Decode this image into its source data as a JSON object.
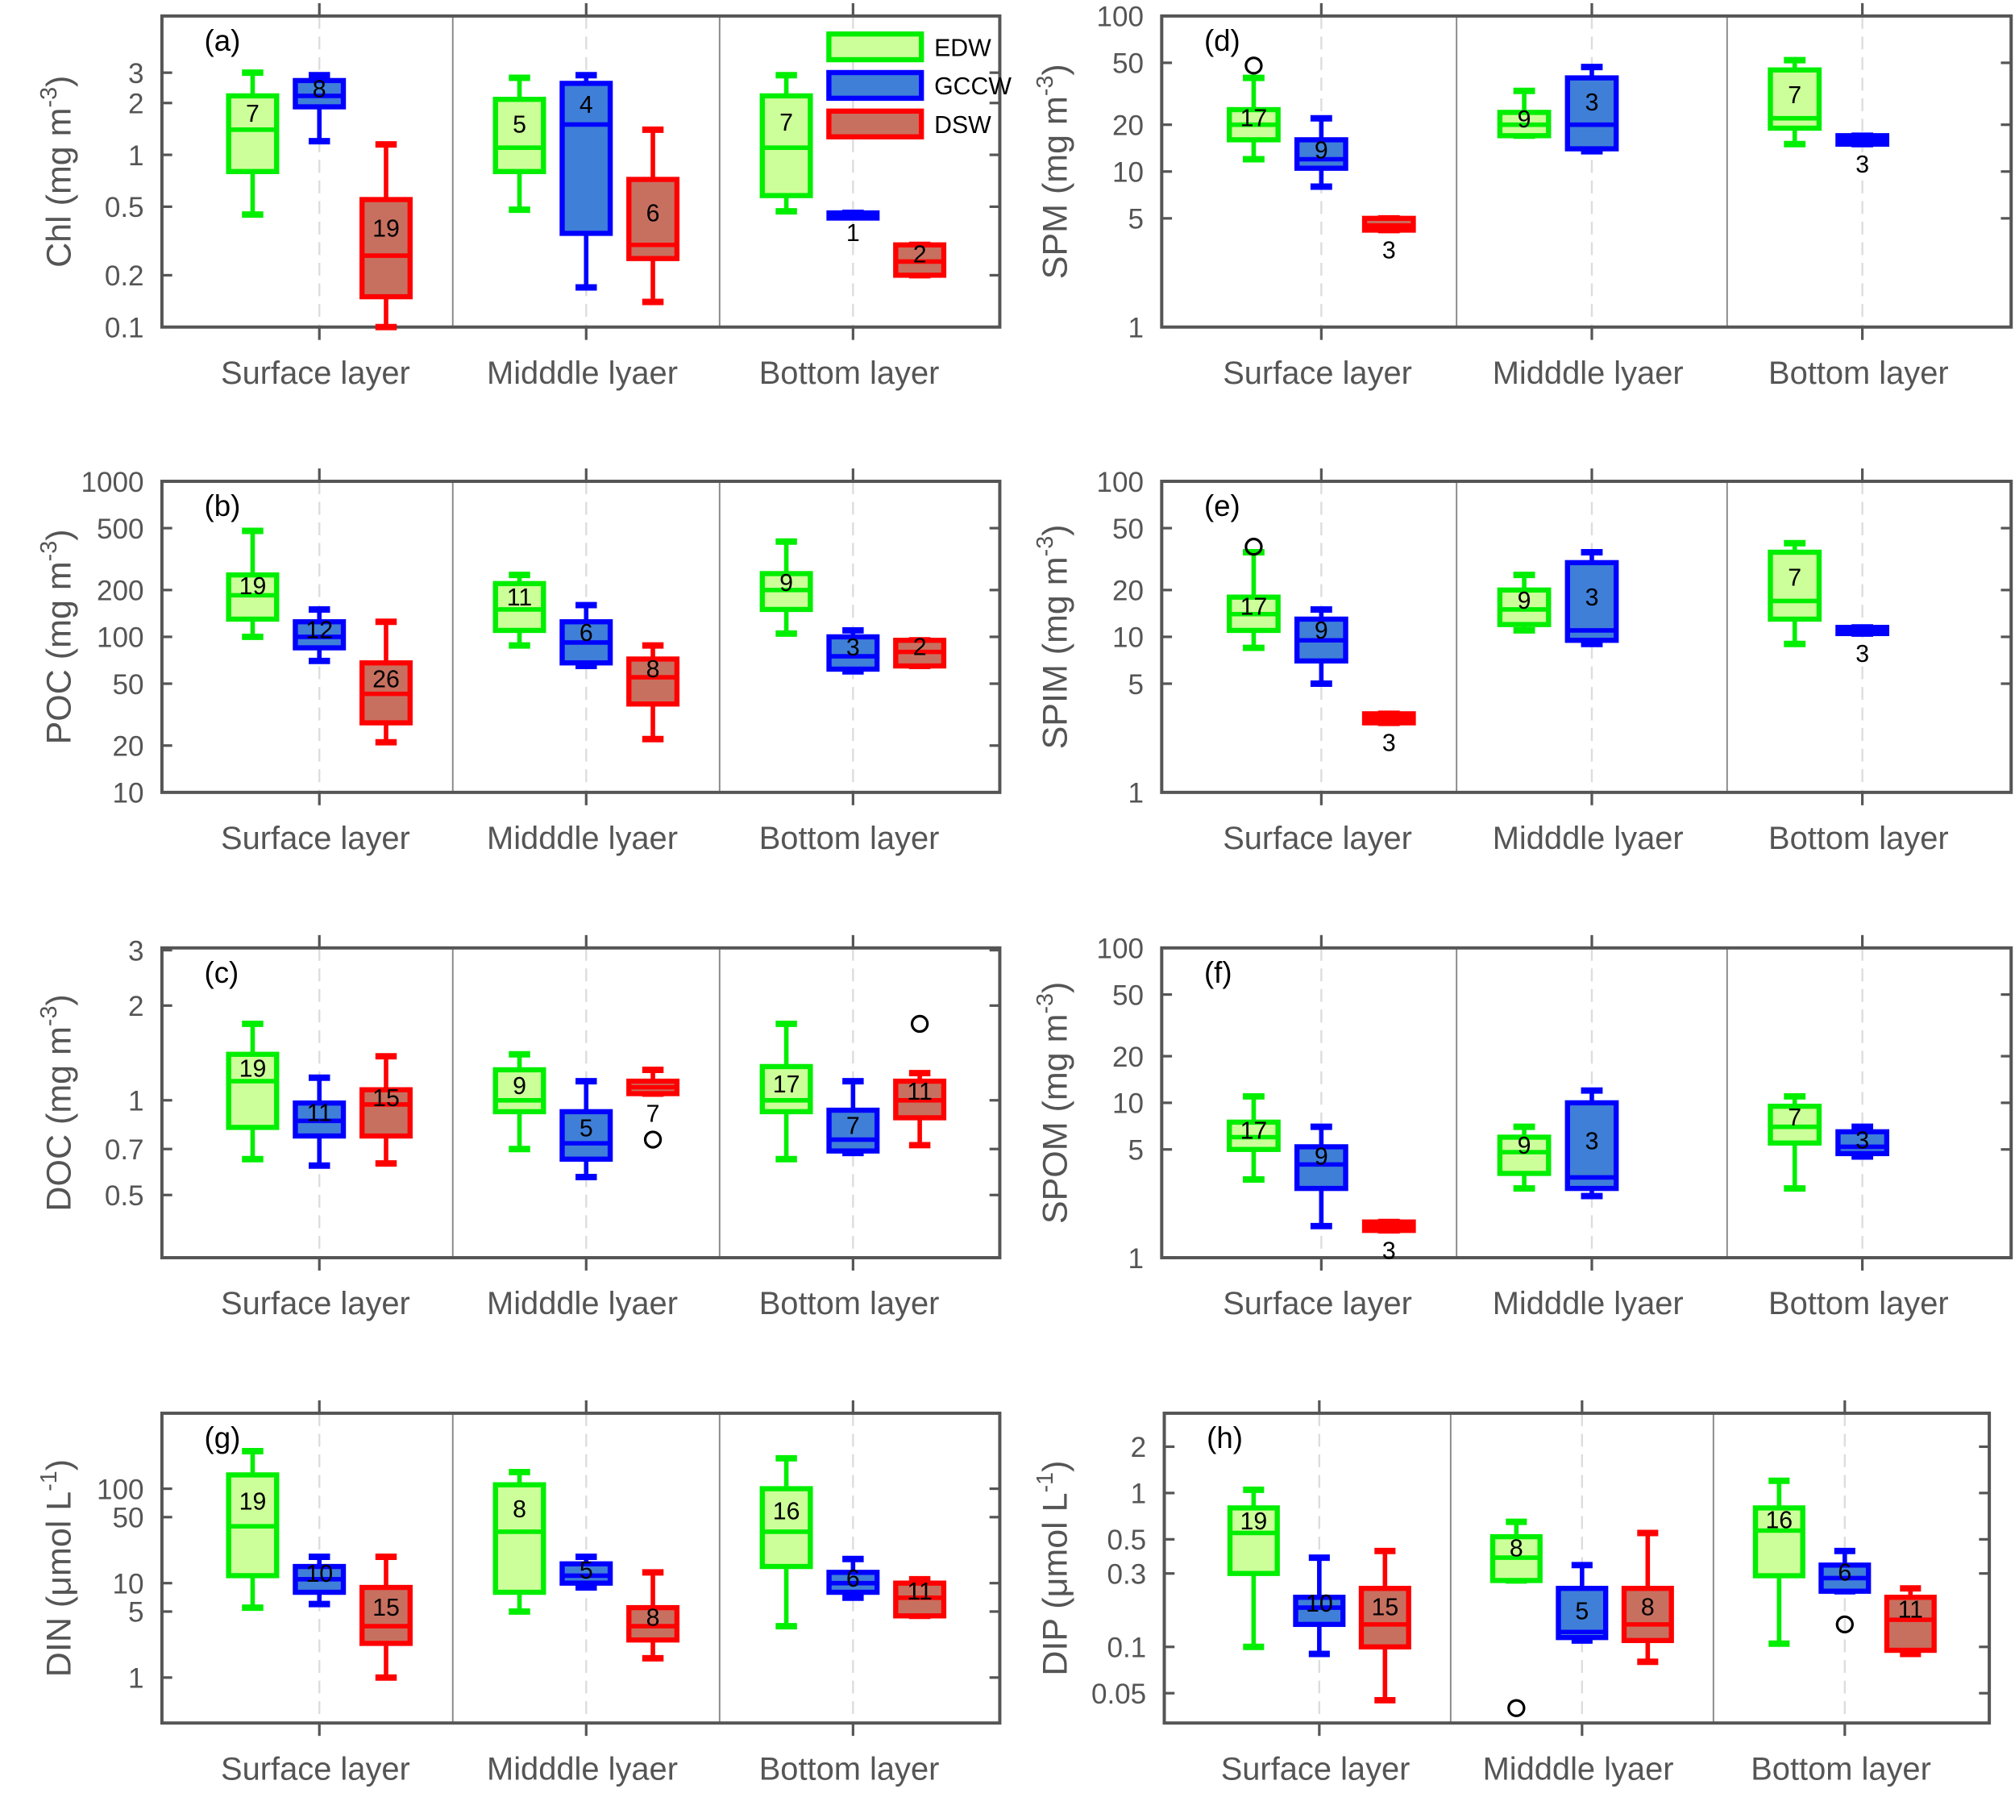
{
  "colors": {
    "EDW": {
      "stroke": "#00ee00",
      "fill": "#ccff99"
    },
    "GCCW": {
      "stroke": "#0000ff",
      "fill": "#3f7fd8"
    },
    "DSW": {
      "stroke": "#ff0000",
      "fill": "#c87060"
    },
    "axis": "#555555"
  },
  "legend": {
    "entries": [
      "EDW",
      "GCCW",
      "DSW"
    ],
    "placement": "top-right of panel (a)"
  },
  "chart_data": [
    {
      "type": "box",
      "panel": "(a)",
      "ylabel": {
        "base": "Chl (mg m",
        "sup": "-3",
        "tail": ")"
      },
      "yscale": "log",
      "ylim": [
        0.1,
        6.4
      ],
      "yticks": [
        "0.1",
        "0.2",
        "0.5",
        "1",
        "2",
        "3"
      ],
      "categories": [
        "Surface layer",
        "Midddle lyaer",
        "Bottom layer"
      ],
      "series": [
        {
          "name": "EDW",
          "boxes": [
            {
              "stats": [
                0.45,
                0.8,
                1.4,
                2.2,
                3
              ],
              "n": "7"
            },
            {
              "stats": [
                0.48,
                0.8,
                1.1,
                2.1,
                2.8
              ],
              "n": "5"
            },
            {
              "stats": [
                0.47,
                0.58,
                1.1,
                2.2,
                2.9
              ],
              "n": "7"
            }
          ]
        },
        {
          "name": "GCCW",
          "boxes": [
            {
              "stats": [
                1.2,
                1.9,
                2.2,
                2.7,
                2.9
              ],
              "n": "8"
            },
            {
              "stats": [
                0.17,
                0.35,
                1.5,
                2.6,
                2.9
              ],
              "n": "4"
            },
            {
              "stats": [
                0.46,
                0.46,
                0.46,
                0.46,
                0.46
              ],
              "n": "1"
            }
          ]
        },
        {
          "name": "DSW",
          "boxes": [
            {
              "stats": [
                0.1,
                0.15,
                0.26,
                0.55,
                1.15
              ],
              "n": "19"
            },
            {
              "stats": [
                0.14,
                0.25,
                0.3,
                0.72,
                1.4
              ],
              "n": "6"
            },
            {
              "stats": [
                0.2,
                0.2,
                0.24,
                0.3,
                0.3
              ],
              "n": "2"
            }
          ]
        }
      ]
    },
    {
      "type": "box",
      "panel": "(b)",
      "ylabel": {
        "base": "POC (mg m",
        "sup": "-3",
        "tail": ")"
      },
      "yscale": "log",
      "ylim": [
        10,
        1000
      ],
      "yticks": [
        "10",
        "20",
        "50",
        "100",
        "200",
        "500",
        "1000"
      ],
      "categories": [
        "Surface layer",
        "Midddle lyaer",
        "Bottom layer"
      ],
      "series": [
        {
          "name": "EDW",
          "boxes": [
            {
              "stats": [
                100,
                130,
                185,
                250,
                480
              ],
              "n": "19"
            },
            {
              "stats": [
                88,
                110,
                150,
                220,
                250
              ],
              "n": "11"
            },
            {
              "stats": [
                105,
                150,
                200,
                255,
                410
              ],
              "n": "9"
            }
          ]
        },
        {
          "name": "GCCW",
          "boxes": [
            {
              "stats": [
                70,
                85,
                100,
                125,
                150
              ],
              "n": "12"
            },
            {
              "stats": [
                65,
                68,
                92,
                125,
                160
              ],
              "n": "6"
            },
            {
              "stats": [
                60,
                62,
                75,
                100,
                110
              ],
              "n": "3"
            }
          ]
        },
        {
          "name": "DSW",
          "boxes": [
            {
              "stats": [
                21,
                28,
                43,
                68,
                125
              ],
              "n": "26"
            },
            {
              "stats": [
                22,
                37,
                55,
                72,
                88
              ],
              "n": "8"
            },
            {
              "stats": [
                65,
                65,
                80,
                95,
                95
              ],
              "n": "2"
            }
          ]
        }
      ]
    },
    {
      "type": "box",
      "panel": "(c)",
      "ylabel": {
        "base": "DOC (mg m",
        "sup": "-3",
        "tail": ")"
      },
      "yscale": "log",
      "ylim": [
        0.316,
        3.05
      ],
      "yticks": [
        "0.5",
        "0.7",
        "1",
        "2",
        "3"
      ],
      "categories": [
        "Surface layer",
        "Midddle lyaer",
        "Bottom layer"
      ],
      "series": [
        {
          "name": "EDW",
          "boxes": [
            {
              "stats": [
                0.65,
                0.82,
                1.15,
                1.4,
                1.75
              ],
              "n": "19"
            },
            {
              "stats": [
                0.7,
                0.92,
                1.0,
                1.25,
                1.4
              ],
              "n": "9"
            },
            {
              "stats": [
                0.65,
                0.92,
                1.0,
                1.28,
                1.75
              ],
              "n": "17"
            }
          ]
        },
        {
          "name": "GCCW",
          "boxes": [
            {
              "stats": [
                0.62,
                0.77,
                0.86,
                0.98,
                1.18
              ],
              "n": "11"
            },
            {
              "stats": [
                0.57,
                0.65,
                0.73,
                0.92,
                1.15
              ],
              "n": "5"
            },
            {
              "stats": [
                0.68,
                0.69,
                0.75,
                0.93,
                1.15
              ],
              "n": "7"
            }
          ]
        },
        {
          "name": "DSW",
          "boxes": [
            {
              "stats": [
                0.63,
                0.77,
                0.97,
                1.08,
                1.38
              ],
              "n": "15"
            },
            {
              "stats": [
                1.05,
                1.05,
                1.1,
                1.15,
                1.25
              ],
              "n": "7",
              "outliers": [
                0.75
              ]
            },
            {
              "stats": [
                0.72,
                0.88,
                1.0,
                1.15,
                1.22
              ],
              "n": "11",
              "outliers": [
                1.75
              ]
            }
          ]
        }
      ]
    },
    {
      "type": "box",
      "panel": "(g)",
      "ylabel": {
        "base": "DIN (μmol L",
        "sup": "-1",
        "tail": ")"
      },
      "yscale": "log",
      "ylim": [
        0.33,
        630
      ],
      "yticks": [
        "1",
        "5",
        "10",
        "50",
        "100"
      ],
      "categories": [
        "Surface layer",
        "Midddle lyaer",
        "Bottom layer"
      ],
      "series": [
        {
          "name": "EDW",
          "boxes": [
            {
              "stats": [
                5.5,
                12,
                40,
                140,
                250
              ],
              "n": "19"
            },
            {
              "stats": [
                5,
                8,
                35,
                110,
                150
              ],
              "n": "8"
            },
            {
              "stats": [
                3.5,
                15,
                35,
                100,
                210
              ],
              "n": "16"
            }
          ]
        },
        {
          "name": "GCCW",
          "boxes": [
            {
              "stats": [
                6,
                8,
                11,
                15,
                19
              ],
              "n": "10"
            },
            {
              "stats": [
                9,
                10,
                12,
                16,
                19
              ],
              "n": "5"
            },
            {
              "stats": [
                7,
                8,
                10,
                13,
                18
              ],
              "n": "6"
            }
          ]
        },
        {
          "name": "DSW",
          "boxes": [
            {
              "stats": [
                1,
                2.3,
                3.5,
                9,
                19
              ],
              "n": "15"
            },
            {
              "stats": [
                1.6,
                2.5,
                3.5,
                5.5,
                13
              ],
              "n": "8"
            },
            {
              "stats": [
                4.5,
                4.5,
                7,
                10,
                11
              ],
              "n": "11"
            }
          ]
        }
      ]
    },
    {
      "type": "box",
      "panel": "(d)",
      "ylabel": {
        "base": "SPM (mg m",
        "sup": "-3",
        "tail": ")"
      },
      "yscale": "log",
      "ylim": [
        1,
        100
      ],
      "yticks": [
        "1",
        "5",
        "10",
        "20",
        "50",
        "100"
      ],
      "categories": [
        "Surface layer",
        "Midddle lyaer",
        "Bottom layer"
      ],
      "series": [
        {
          "name": "EDW",
          "boxes": [
            {
              "stats": [
                12,
                16,
                20,
                25,
                40
              ],
              "n": "17",
              "outliers": [
                48
              ]
            },
            {
              "stats": [
                17,
                17,
                20,
                24,
                33
              ],
              "n": "9"
            },
            {
              "stats": [
                15,
                19,
                22,
                45,
                52
              ],
              "n": "7"
            }
          ]
        },
        {
          "name": "GCCW",
          "boxes": [
            {
              "stats": [
                8,
                10.5,
                12,
                16,
                22
              ],
              "n": "9"
            },
            {
              "stats": [
                13.5,
                14,
                20,
                40,
                47
              ],
              "n": "3"
            },
            {
              "stats": [
                15,
                15,
                16,
                17,
                17
              ],
              "n": "3"
            }
          ]
        },
        {
          "name": "DSW",
          "boxes": [
            {
              "stats": [
                4.2,
                4.2,
                4.5,
                5,
                5
              ],
              "n": "3"
            },
            null,
            null
          ]
        }
      ]
    },
    {
      "type": "box",
      "panel": "(e)",
      "ylabel": {
        "base": "SPIM (mg m",
        "sup": "-3",
        "tail": ")"
      },
      "yscale": "log",
      "ylim": [
        1,
        100
      ],
      "yticks": [
        "1",
        "5",
        "10",
        "20",
        "50",
        "100"
      ],
      "categories": [
        "Surface layer",
        "Midddle lyaer",
        "Bottom layer"
      ],
      "series": [
        {
          "name": "EDW",
          "boxes": [
            {
              "stats": [
                8.5,
                11,
                14,
                18,
                35
              ],
              "n": "17",
              "outliers": [
                38
              ]
            },
            {
              "stats": [
                11,
                12,
                15,
                20,
                25
              ],
              "n": "9"
            },
            {
              "stats": [
                9,
                13,
                17,
                35,
                40
              ],
              "n": "7"
            }
          ]
        },
        {
          "name": "GCCW",
          "boxes": [
            {
              "stats": [
                5,
                7,
                9.5,
                13,
                15
              ],
              "n": "9"
            },
            {
              "stats": [
                9,
                9.5,
                11,
                30,
                35
              ],
              "n": "3"
            },
            {
              "stats": [
                10.5,
                10.5,
                11,
                11.5,
                11.5
              ],
              "n": "3"
            }
          ]
        },
        {
          "name": "DSW",
          "boxes": [
            {
              "stats": [
                2.8,
                2.8,
                3,
                3.2,
                3.2
              ],
              "n": "3"
            },
            null,
            null
          ]
        }
      ]
    },
    {
      "type": "box",
      "panel": "(f)",
      "ylabel": {
        "base": "SPOM (mg m",
        "sup": "-3",
        "tail": ")"
      },
      "yscale": "log",
      "ylim": [
        1,
        100
      ],
      "yticks": [
        "1",
        "5",
        "10",
        "20",
        "50",
        "100"
      ],
      "categories": [
        "Surface layer",
        "Midddle lyaer",
        "Bottom layer"
      ],
      "series": [
        {
          "name": "EDW",
          "boxes": [
            {
              "stats": [
                3.2,
                5,
                6,
                7.5,
                11
              ],
              "n": "17"
            },
            {
              "stats": [
                2.8,
                3.5,
                4.8,
                6,
                7
              ],
              "n": "9"
            },
            {
              "stats": [
                2.8,
                5.5,
                7,
                9.5,
                11
              ],
              "n": "7"
            }
          ]
        },
        {
          "name": "GCCW",
          "boxes": [
            {
              "stats": [
                1.6,
                2.8,
                4,
                5.2,
                7
              ],
              "n": "9"
            },
            {
              "stats": [
                2.5,
                2.8,
                3.3,
                10,
                12
              ],
              "n": "3"
            },
            {
              "stats": [
                4.5,
                4.7,
                5.2,
                6.5,
                7
              ],
              "n": "3"
            }
          ]
        },
        {
          "name": "DSW",
          "boxes": [
            {
              "stats": [
                1.5,
                1.5,
                1.6,
                1.7,
                1.7
              ],
              "n": "3"
            },
            null,
            null
          ]
        }
      ]
    },
    {
      "type": "box",
      "panel": "(h)",
      "ylabel": {
        "base": "DIP (μmol L",
        "sup": "-1",
        "tail": ")"
      },
      "yscale": "log",
      "ylim": [
        0.032,
        3.3
      ],
      "yticks": [
        "0.05",
        "0.1",
        "0.3",
        "0.5",
        "1",
        "2"
      ],
      "categories": [
        "Surface layer",
        "Midddle lyaer",
        "Bottom layer"
      ],
      "series": [
        {
          "name": "EDW",
          "boxes": [
            {
              "stats": [
                0.1,
                0.3,
                0.55,
                0.8,
                1.05
              ],
              "n": "19"
            },
            {
              "stats": [
                0.27,
                0.27,
                0.38,
                0.52,
                0.65
              ],
              "n": "8",
              "outliers": [
                0.04
              ]
            },
            {
              "stats": [
                0.105,
                0.29,
                0.57,
                0.8,
                1.2
              ],
              "n": "16"
            }
          ]
        },
        {
          "name": "GCCW",
          "boxes": [
            {
              "stats": [
                0.09,
                0.14,
                0.18,
                0.21,
                0.38
              ],
              "n": "10"
            },
            {
              "stats": [
                0.11,
                0.115,
                0.125,
                0.24,
                0.34
              ],
              "n": "5"
            },
            {
              "stats": [
                0.23,
                0.23,
                0.28,
                0.34,
                0.42
              ],
              "n": "6",
              "outliers": [
                0.14
              ]
            }
          ]
        },
        {
          "name": "DSW",
          "boxes": [
            {
              "stats": [
                0.045,
                0.1,
                0.14,
                0.24,
                0.42
              ],
              "n": "15"
            },
            {
              "stats": [
                0.08,
                0.11,
                0.14,
                0.24,
                0.55
              ],
              "n": "8"
            },
            {
              "stats": [
                0.09,
                0.095,
                0.15,
                0.21,
                0.24
              ],
              "n": "11"
            }
          ]
        }
      ]
    }
  ]
}
